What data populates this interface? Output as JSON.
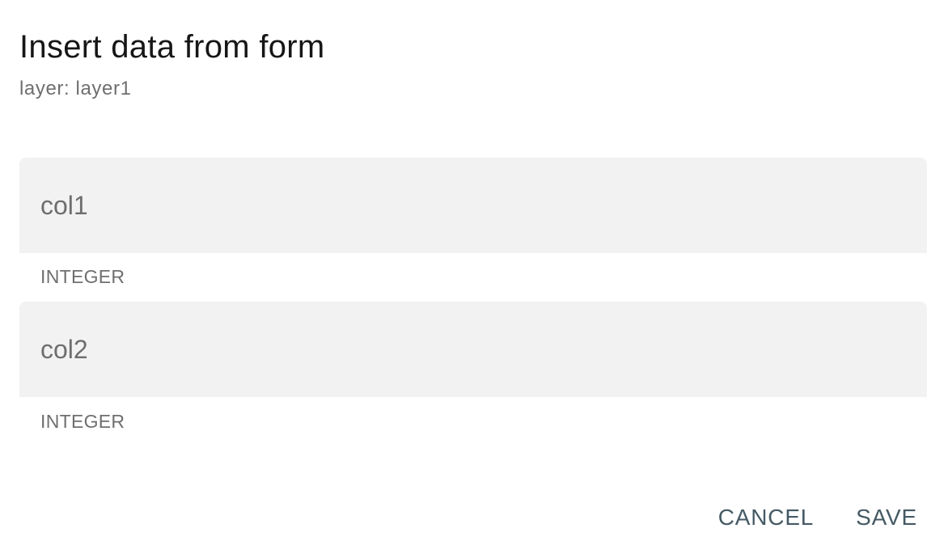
{
  "dialog": {
    "title": "Insert data from form",
    "subtitle": "layer: layer1"
  },
  "fields": [
    {
      "label": "col1",
      "value": "",
      "helper": "INTEGER"
    },
    {
      "label": "col2",
      "value": "",
      "helper": "INTEGER"
    }
  ],
  "actions": {
    "cancel_label": "CANCEL",
    "save_label": "SAVE"
  },
  "colors": {
    "button_text": "#455a64",
    "field_background": "#f2f2f2"
  }
}
